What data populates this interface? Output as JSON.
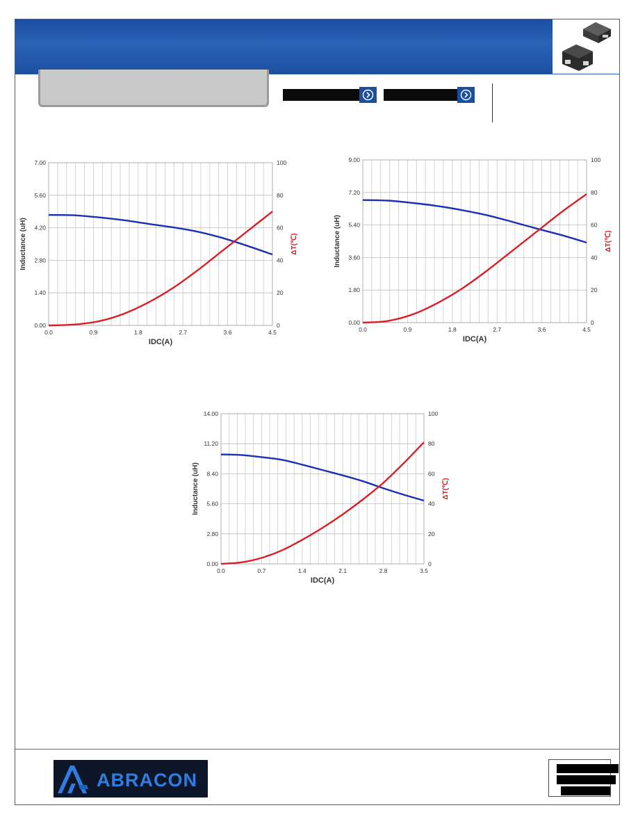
{
  "brand": {
    "logo_text": "ABRACON",
    "header_color": "#1f56a8",
    "logo_background": "#0d1628",
    "logo_accent": "#2f7de1"
  },
  "header": {
    "nav_buttons": [
      {
        "icon": "chevron-right-circle-icon"
      },
      {
        "icon": "chevron-right-circle-icon"
      }
    ],
    "product_image": "smd-power-inductor-image"
  },
  "colors": {
    "inductance_line": "#1a2fb5",
    "temperature_line": "#d91f26"
  },
  "chart_data": [
    {
      "type": "line",
      "xlabel": "IDC(A)",
      "ylabel": "Inductance (uH)",
      "y2label": "ΔT(℃)",
      "xlim": [
        0,
        4.5
      ],
      "ylim": [
        0,
        7.0
      ],
      "y2lim": [
        0,
        100
      ],
      "x_ticks": [
        "0.0",
        "0.9",
        "1.8",
        "2.7",
        "3.6",
        "4.5"
      ],
      "y_ticks": [
        "0.00",
        "1.40",
        "2.80",
        "4.20",
        "5.60",
        "7.00"
      ],
      "y2_ticks": [
        "0",
        "20",
        "40",
        "60",
        "80",
        "100"
      ],
      "grid": true,
      "series": [
        {
          "axis": "left",
          "color": "#1a2fb5",
          "x": [
            0,
            0.5,
            1.0,
            1.5,
            2.0,
            2.5,
            3.0,
            3.5,
            4.0,
            4.5
          ],
          "y": [
            4.75,
            4.74,
            4.65,
            4.53,
            4.37,
            4.22,
            4.03,
            3.76,
            3.42,
            3.05
          ]
        },
        {
          "axis": "right",
          "color": "#d91f26",
          "x": [
            0,
            0.5,
            1.0,
            1.5,
            2.0,
            2.5,
            3.0,
            3.5,
            4.0,
            4.5
          ],
          "y": [
            0,
            0.5,
            2.5,
            7,
            14,
            23,
            34,
            46,
            58,
            70
          ]
        }
      ]
    },
    {
      "type": "line",
      "xlabel": "IDC(A)",
      "ylabel": "Inductance (uH)",
      "y2label": "ΔT(℃)",
      "xlim": [
        0,
        4.5
      ],
      "ylim": [
        0,
        9.0
      ],
      "y2lim": [
        0,
        100
      ],
      "x_ticks": [
        "0.0",
        "0.9",
        "1.8",
        "2.7",
        "3.6",
        "4.5"
      ],
      "y_ticks": [
        "0.00",
        "1.80",
        "3.60",
        "5.40",
        "7.20",
        "9.00"
      ],
      "y2_ticks": [
        "0",
        "20",
        "40",
        "60",
        "80",
        "100"
      ],
      "grid": true,
      "series": [
        {
          "axis": "left",
          "color": "#1a2fb5",
          "x": [
            0,
            0.5,
            1.0,
            1.5,
            2.0,
            2.5,
            3.0,
            3.5,
            4.0,
            4.5
          ],
          "y": [
            6.78,
            6.75,
            6.62,
            6.45,
            6.22,
            5.94,
            5.58,
            5.2,
            4.84,
            4.43
          ]
        },
        {
          "axis": "right",
          "color": "#d91f26",
          "x": [
            0,
            0.5,
            1.0,
            1.5,
            2.0,
            2.5,
            3.0,
            3.5,
            4.0,
            4.5
          ],
          "y": [
            0,
            1,
            5,
            12,
            21,
            32,
            44,
            56,
            68,
            79
          ]
        }
      ]
    },
    {
      "type": "line",
      "xlabel": "IDC(A)",
      "ylabel": "Inductance (uH)",
      "y2label": "ΔT(℃)",
      "xlim": [
        0,
        3.5
      ],
      "ylim": [
        0,
        14.0
      ],
      "y2lim": [
        0,
        100
      ],
      "x_ticks": [
        "0.0",
        "0.7",
        "1.4",
        "2.1",
        "2.8",
        "3.5"
      ],
      "y_ticks": [
        "0.00",
        "2.80",
        "5.60",
        "8.40",
        "11.20",
        "14.00"
      ],
      "y2_ticks": [
        "0",
        "20",
        "40",
        "60",
        "80",
        "100"
      ],
      "grid": true,
      "series": [
        {
          "axis": "left",
          "color": "#1a2fb5",
          "x": [
            0,
            0.35,
            0.7,
            1.05,
            1.4,
            1.75,
            2.1,
            2.45,
            2.8,
            3.15,
            3.5
          ],
          "y": [
            10.2,
            10.15,
            9.95,
            9.7,
            9.25,
            8.75,
            8.25,
            7.7,
            7.05,
            6.45,
            5.9
          ]
        },
        {
          "axis": "right",
          "color": "#d91f26",
          "x": [
            0,
            0.35,
            0.7,
            1.05,
            1.4,
            1.75,
            2.1,
            2.45,
            2.8,
            3.15,
            3.5
          ],
          "y": [
            0,
            1,
            4,
            9,
            16,
            24,
            33,
            43,
            54,
            67,
            81
          ]
        }
      ]
    }
  ]
}
